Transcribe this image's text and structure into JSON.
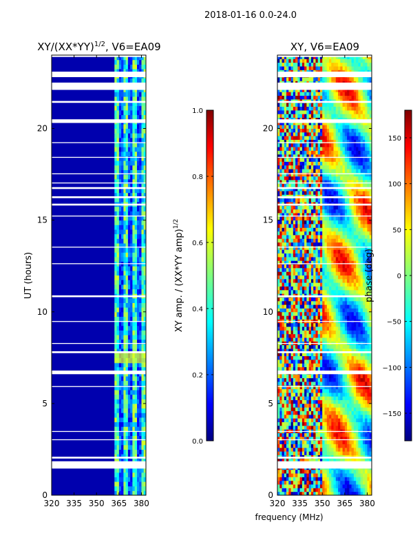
{
  "suptitle": "2018-01-16 0.0-24.0",
  "chart_data": [
    {
      "type": "heatmap",
      "title_main": "XY/(XX*YY)",
      "title_sup": "1/2",
      "title_rest": ", V6=EA09",
      "xlabel": "",
      "ylabel": "UT (hours)",
      "xlim": [
        320,
        383
      ],
      "ylim": [
        0,
        24
      ],
      "xticks": [
        "320",
        "335",
        "350",
        "365",
        "380"
      ],
      "yticks": [
        "0",
        "5",
        "10",
        "15",
        "20"
      ],
      "colorbar": {
        "label_main": "XY amp. / (XX*YY amp)",
        "label_sup": "1/2",
        "range": [
          0.0,
          1.0
        ],
        "ticks": [
          "0.0",
          "0.2",
          "0.4",
          "0.6",
          "0.8",
          "1.0"
        ]
      }
    },
    {
      "type": "heatmap",
      "title": "XY, V6=EA09",
      "xlabel": "frequency (MHz)",
      "ylabel": "",
      "xlim": [
        320,
        383
      ],
      "ylim": [
        0,
        24
      ],
      "xticks": [
        "320",
        "335",
        "350",
        "365",
        "380"
      ],
      "yticks": [
        "0",
        "5",
        "10",
        "15",
        "20"
      ],
      "colorbar": {
        "label": "phase (deg)",
        "range": [
          -180,
          180
        ],
        "ticks": [
          "−150",
          "−100",
          "−50",
          "0",
          "50",
          "100",
          "150"
        ]
      }
    }
  ],
  "colors": {
    "jet_low": "#00007f",
    "jet_blue": "#0000ff",
    "jet_cyan": "#00ffff",
    "jet_green": "#7fff7f",
    "jet_yellow": "#ffff00",
    "jet_red": "#ff0000",
    "jet_high": "#7f0000",
    "gap": "#ffffff"
  }
}
